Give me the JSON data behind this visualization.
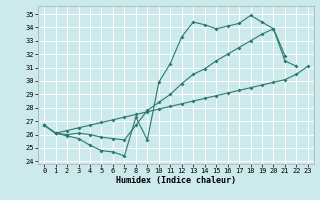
{
  "xlabel": "Humidex (Indice chaleur)",
  "xlim": [
    -0.5,
    23.5
  ],
  "ylim": [
    23.8,
    35.6
  ],
  "yticks": [
    24,
    25,
    26,
    27,
    28,
    29,
    30,
    31,
    32,
    33,
    34,
    35
  ],
  "xticks": [
    0,
    1,
    2,
    3,
    4,
    5,
    6,
    7,
    8,
    9,
    10,
    11,
    12,
    13,
    14,
    15,
    16,
    17,
    18,
    19,
    20,
    21,
    22,
    23
  ],
  "bg_color": "#cce9ec",
  "grid_color": "#ffffff",
  "line_color": "#2a7a6a",
  "line1_y": [
    26.7,
    26.1,
    25.9,
    25.7,
    25.2,
    24.8,
    24.7,
    24.4,
    27.3,
    25.6,
    29.9,
    31.3,
    33.3,
    34.4,
    34.2,
    33.9,
    34.1,
    34.3,
    34.9,
    34.4,
    33.9,
    31.9
  ],
  "line2_y": [
    26.7,
    26.1,
    26.0,
    26.1,
    26.0,
    25.8,
    25.7,
    25.6,
    26.7,
    27.8,
    28.4,
    29.0,
    29.8,
    30.5,
    30.9,
    31.5,
    32.0,
    32.5,
    33.0,
    33.5,
    33.9,
    31.5,
    31.1
  ],
  "line3_y": [
    26.7,
    26.1,
    26.3,
    26.5,
    26.7,
    26.9,
    27.1,
    27.3,
    27.5,
    27.7,
    27.9,
    28.1,
    28.3,
    28.5,
    28.7,
    28.9,
    29.1,
    29.3,
    29.5,
    29.7,
    29.9,
    30.1,
    30.5,
    31.1
  ]
}
